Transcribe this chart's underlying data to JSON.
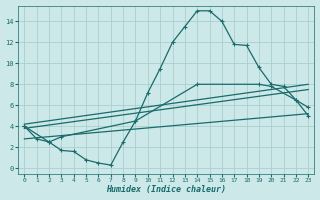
{
  "background_color": "#cce8e8",
  "grid_color": "#aacece",
  "line_color": "#1a6b6b",
  "xlabel": "Humidex (Indice chaleur)",
  "xlim": [
    -0.5,
    23.5
  ],
  "ylim": [
    -0.5,
    15.5
  ],
  "yticks": [
    0,
    2,
    4,
    6,
    8,
    10,
    12,
    14
  ],
  "xticks": [
    0,
    1,
    2,
    3,
    4,
    5,
    6,
    7,
    8,
    9,
    10,
    11,
    12,
    13,
    14,
    15,
    16,
    17,
    18,
    19,
    20,
    21,
    22,
    23
  ],
  "curve1_x": [
    0,
    1,
    2,
    3,
    4,
    5,
    6,
    7,
    8,
    9,
    10,
    11,
    12,
    13,
    14,
    15,
    16,
    17,
    18,
    19,
    20,
    21,
    22,
    23
  ],
  "curve1_y": [
    4.0,
    2.8,
    2.5,
    1.7,
    1.6,
    0.8,
    0.5,
    0.3,
    2.5,
    4.5,
    7.2,
    9.5,
    12.0,
    13.5,
    15.0,
    15.0,
    14.0,
    11.8,
    11.7,
    9.6,
    8.0,
    7.8,
    6.5,
    5.8
  ],
  "curve2_x": [
    0,
    2,
    3,
    9,
    14,
    19,
    20,
    22,
    23
  ],
  "curve2_y": [
    4.0,
    2.5,
    3.0,
    4.5,
    8.0,
    8.0,
    7.8,
    6.5,
    5.0
  ],
  "line1_x": [
    0,
    23
  ],
  "line1_y": [
    4.2,
    8.0
  ],
  "line2_x": [
    0,
    23
  ],
  "line2_y": [
    3.8,
    7.5
  ],
  "line3_x": [
    0,
    23
  ],
  "line3_y": [
    2.8,
    5.2
  ]
}
